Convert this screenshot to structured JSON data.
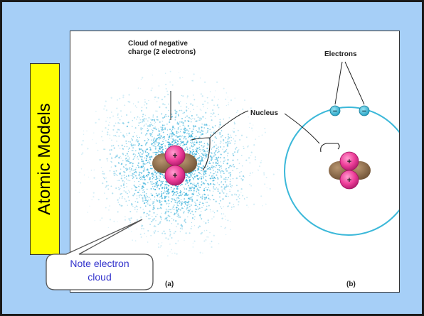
{
  "slide": {
    "side_title": "Atomic Models",
    "colors": {
      "background": "#a6cff7",
      "title_box": "#ffff00",
      "orbit": "#3bb8d9",
      "proton": "#ee3f9a",
      "neutron": "#8c6a45"
    }
  },
  "figure": {
    "cloud_label": "Cloud of negative\ncharge (2 electrons)",
    "nucleus_label": "Nucleus",
    "electrons_label": "Electrons",
    "panel_a_label": "(a)",
    "panel_b_label": "(b)",
    "proton_sign": "+",
    "electron_sign": "−"
  },
  "callout": {
    "text": "Note electron\ncloud"
  }
}
